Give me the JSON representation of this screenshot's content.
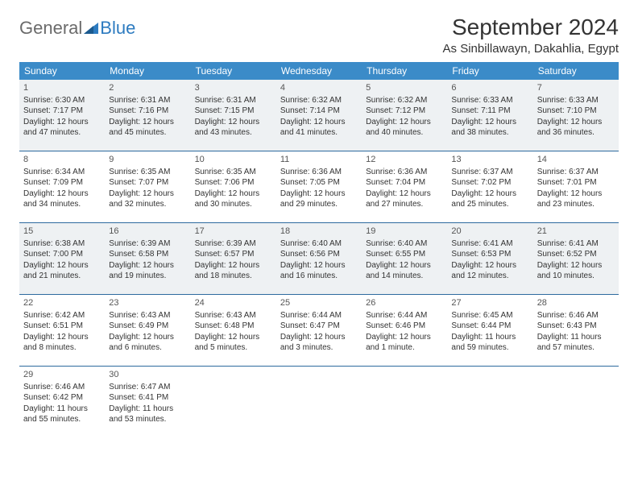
{
  "logo": {
    "part1": "General",
    "part2": "Blue"
  },
  "title": "September 2024",
  "location": "As Sinbillawayn, Dakahlia, Egypt",
  "colors": {
    "header_bg": "#3b8bc8",
    "header_text": "#ffffff",
    "shade_bg": "#eef1f3",
    "rule": "#2d6a9e",
    "logo_gray": "#6b6b6b",
    "logo_blue": "#2d7bc0"
  },
  "day_labels": [
    "Sunday",
    "Monday",
    "Tuesday",
    "Wednesday",
    "Thursday",
    "Friday",
    "Saturday"
  ],
  "days": [
    {
      "n": 1,
      "sunrise": "6:30 AM",
      "sunset": "7:17 PM",
      "daylight": "12 hours and 47 minutes."
    },
    {
      "n": 2,
      "sunrise": "6:31 AM",
      "sunset": "7:16 PM",
      "daylight": "12 hours and 45 minutes."
    },
    {
      "n": 3,
      "sunrise": "6:31 AM",
      "sunset": "7:15 PM",
      "daylight": "12 hours and 43 minutes."
    },
    {
      "n": 4,
      "sunrise": "6:32 AM",
      "sunset": "7:14 PM",
      "daylight": "12 hours and 41 minutes."
    },
    {
      "n": 5,
      "sunrise": "6:32 AM",
      "sunset": "7:12 PM",
      "daylight": "12 hours and 40 minutes."
    },
    {
      "n": 6,
      "sunrise": "6:33 AM",
      "sunset": "7:11 PM",
      "daylight": "12 hours and 38 minutes."
    },
    {
      "n": 7,
      "sunrise": "6:33 AM",
      "sunset": "7:10 PM",
      "daylight": "12 hours and 36 minutes."
    },
    {
      "n": 8,
      "sunrise": "6:34 AM",
      "sunset": "7:09 PM",
      "daylight": "12 hours and 34 minutes."
    },
    {
      "n": 9,
      "sunrise": "6:35 AM",
      "sunset": "7:07 PM",
      "daylight": "12 hours and 32 minutes."
    },
    {
      "n": 10,
      "sunrise": "6:35 AM",
      "sunset": "7:06 PM",
      "daylight": "12 hours and 30 minutes."
    },
    {
      "n": 11,
      "sunrise": "6:36 AM",
      "sunset": "7:05 PM",
      "daylight": "12 hours and 29 minutes."
    },
    {
      "n": 12,
      "sunrise": "6:36 AM",
      "sunset": "7:04 PM",
      "daylight": "12 hours and 27 minutes."
    },
    {
      "n": 13,
      "sunrise": "6:37 AM",
      "sunset": "7:02 PM",
      "daylight": "12 hours and 25 minutes."
    },
    {
      "n": 14,
      "sunrise": "6:37 AM",
      "sunset": "7:01 PM",
      "daylight": "12 hours and 23 minutes."
    },
    {
      "n": 15,
      "sunrise": "6:38 AM",
      "sunset": "7:00 PM",
      "daylight": "12 hours and 21 minutes."
    },
    {
      "n": 16,
      "sunrise": "6:39 AM",
      "sunset": "6:58 PM",
      "daylight": "12 hours and 19 minutes."
    },
    {
      "n": 17,
      "sunrise": "6:39 AM",
      "sunset": "6:57 PM",
      "daylight": "12 hours and 18 minutes."
    },
    {
      "n": 18,
      "sunrise": "6:40 AM",
      "sunset": "6:56 PM",
      "daylight": "12 hours and 16 minutes."
    },
    {
      "n": 19,
      "sunrise": "6:40 AM",
      "sunset": "6:55 PM",
      "daylight": "12 hours and 14 minutes."
    },
    {
      "n": 20,
      "sunrise": "6:41 AM",
      "sunset": "6:53 PM",
      "daylight": "12 hours and 12 minutes."
    },
    {
      "n": 21,
      "sunrise": "6:41 AM",
      "sunset": "6:52 PM",
      "daylight": "12 hours and 10 minutes."
    },
    {
      "n": 22,
      "sunrise": "6:42 AM",
      "sunset": "6:51 PM",
      "daylight": "12 hours and 8 minutes."
    },
    {
      "n": 23,
      "sunrise": "6:43 AM",
      "sunset": "6:49 PM",
      "daylight": "12 hours and 6 minutes."
    },
    {
      "n": 24,
      "sunrise": "6:43 AM",
      "sunset": "6:48 PM",
      "daylight": "12 hours and 5 minutes."
    },
    {
      "n": 25,
      "sunrise": "6:44 AM",
      "sunset": "6:47 PM",
      "daylight": "12 hours and 3 minutes."
    },
    {
      "n": 26,
      "sunrise": "6:44 AM",
      "sunset": "6:46 PM",
      "daylight": "12 hours and 1 minute."
    },
    {
      "n": 27,
      "sunrise": "6:45 AM",
      "sunset": "6:44 PM",
      "daylight": "11 hours and 59 minutes."
    },
    {
      "n": 28,
      "sunrise": "6:46 AM",
      "sunset": "6:43 PM",
      "daylight": "11 hours and 57 minutes."
    },
    {
      "n": 29,
      "sunrise": "6:46 AM",
      "sunset": "6:42 PM",
      "daylight": "11 hours and 55 minutes."
    },
    {
      "n": 30,
      "sunrise": "6:47 AM",
      "sunset": "6:41 PM",
      "daylight": "11 hours and 53 minutes."
    }
  ],
  "labels": {
    "sunrise": "Sunrise: ",
    "sunset": "Sunset: ",
    "daylight": "Daylight: "
  },
  "layout": {
    "weeks": 5,
    "shade_rows": [
      0,
      2
    ],
    "trailing_empty": 5
  }
}
